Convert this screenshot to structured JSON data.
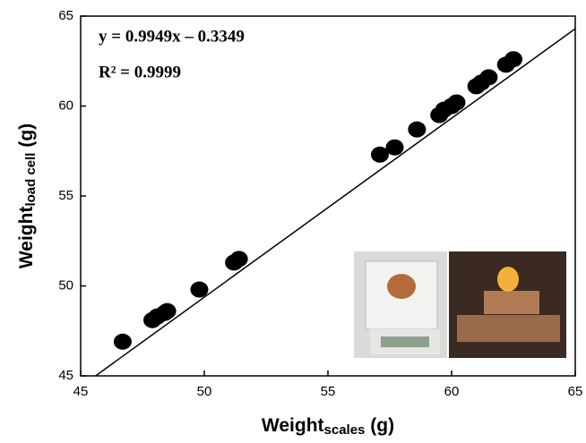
{
  "chart_data": {
    "type": "scatter",
    "annotations": [
      "y = 0.9949x – 0.3349",
      "R² = 0.9999"
    ],
    "xlabel": {
      "main": "Weight",
      "sub": "scales",
      "unit": "(g)"
    },
    "ylabel": {
      "main": "Weight",
      "sub": "load cell",
      "unit": "(g)"
    },
    "xlim": [
      45,
      65
    ],
    "ylim": [
      45,
      65
    ],
    "xticks": [
      45,
      50,
      55,
      60,
      65
    ],
    "yticks": [
      45,
      50,
      55,
      60,
      65
    ],
    "series": [
      {
        "color": "#000000",
        "x": [
          46.7,
          47.9,
          48.1,
          48.4,
          48.5,
          49.8,
          51.2,
          51.4,
          57.1,
          57.7,
          58.6,
          59.5,
          59.7,
          60.0,
          60.2,
          61.0,
          61.2,
          61.5,
          62.2,
          62.5
        ],
        "values": [
          46.9,
          48.1,
          48.3,
          48.5,
          48.6,
          49.8,
          51.3,
          51.5,
          57.3,
          57.7,
          58.7,
          59.5,
          59.8,
          60.0,
          60.2,
          61.1,
          61.3,
          61.6,
          62.3,
          62.6
        ]
      }
    ],
    "fit": {
      "color": "#000000",
      "x": [
        45,
        65
      ],
      "values": [
        44.4,
        64.3
      ]
    }
  }
}
